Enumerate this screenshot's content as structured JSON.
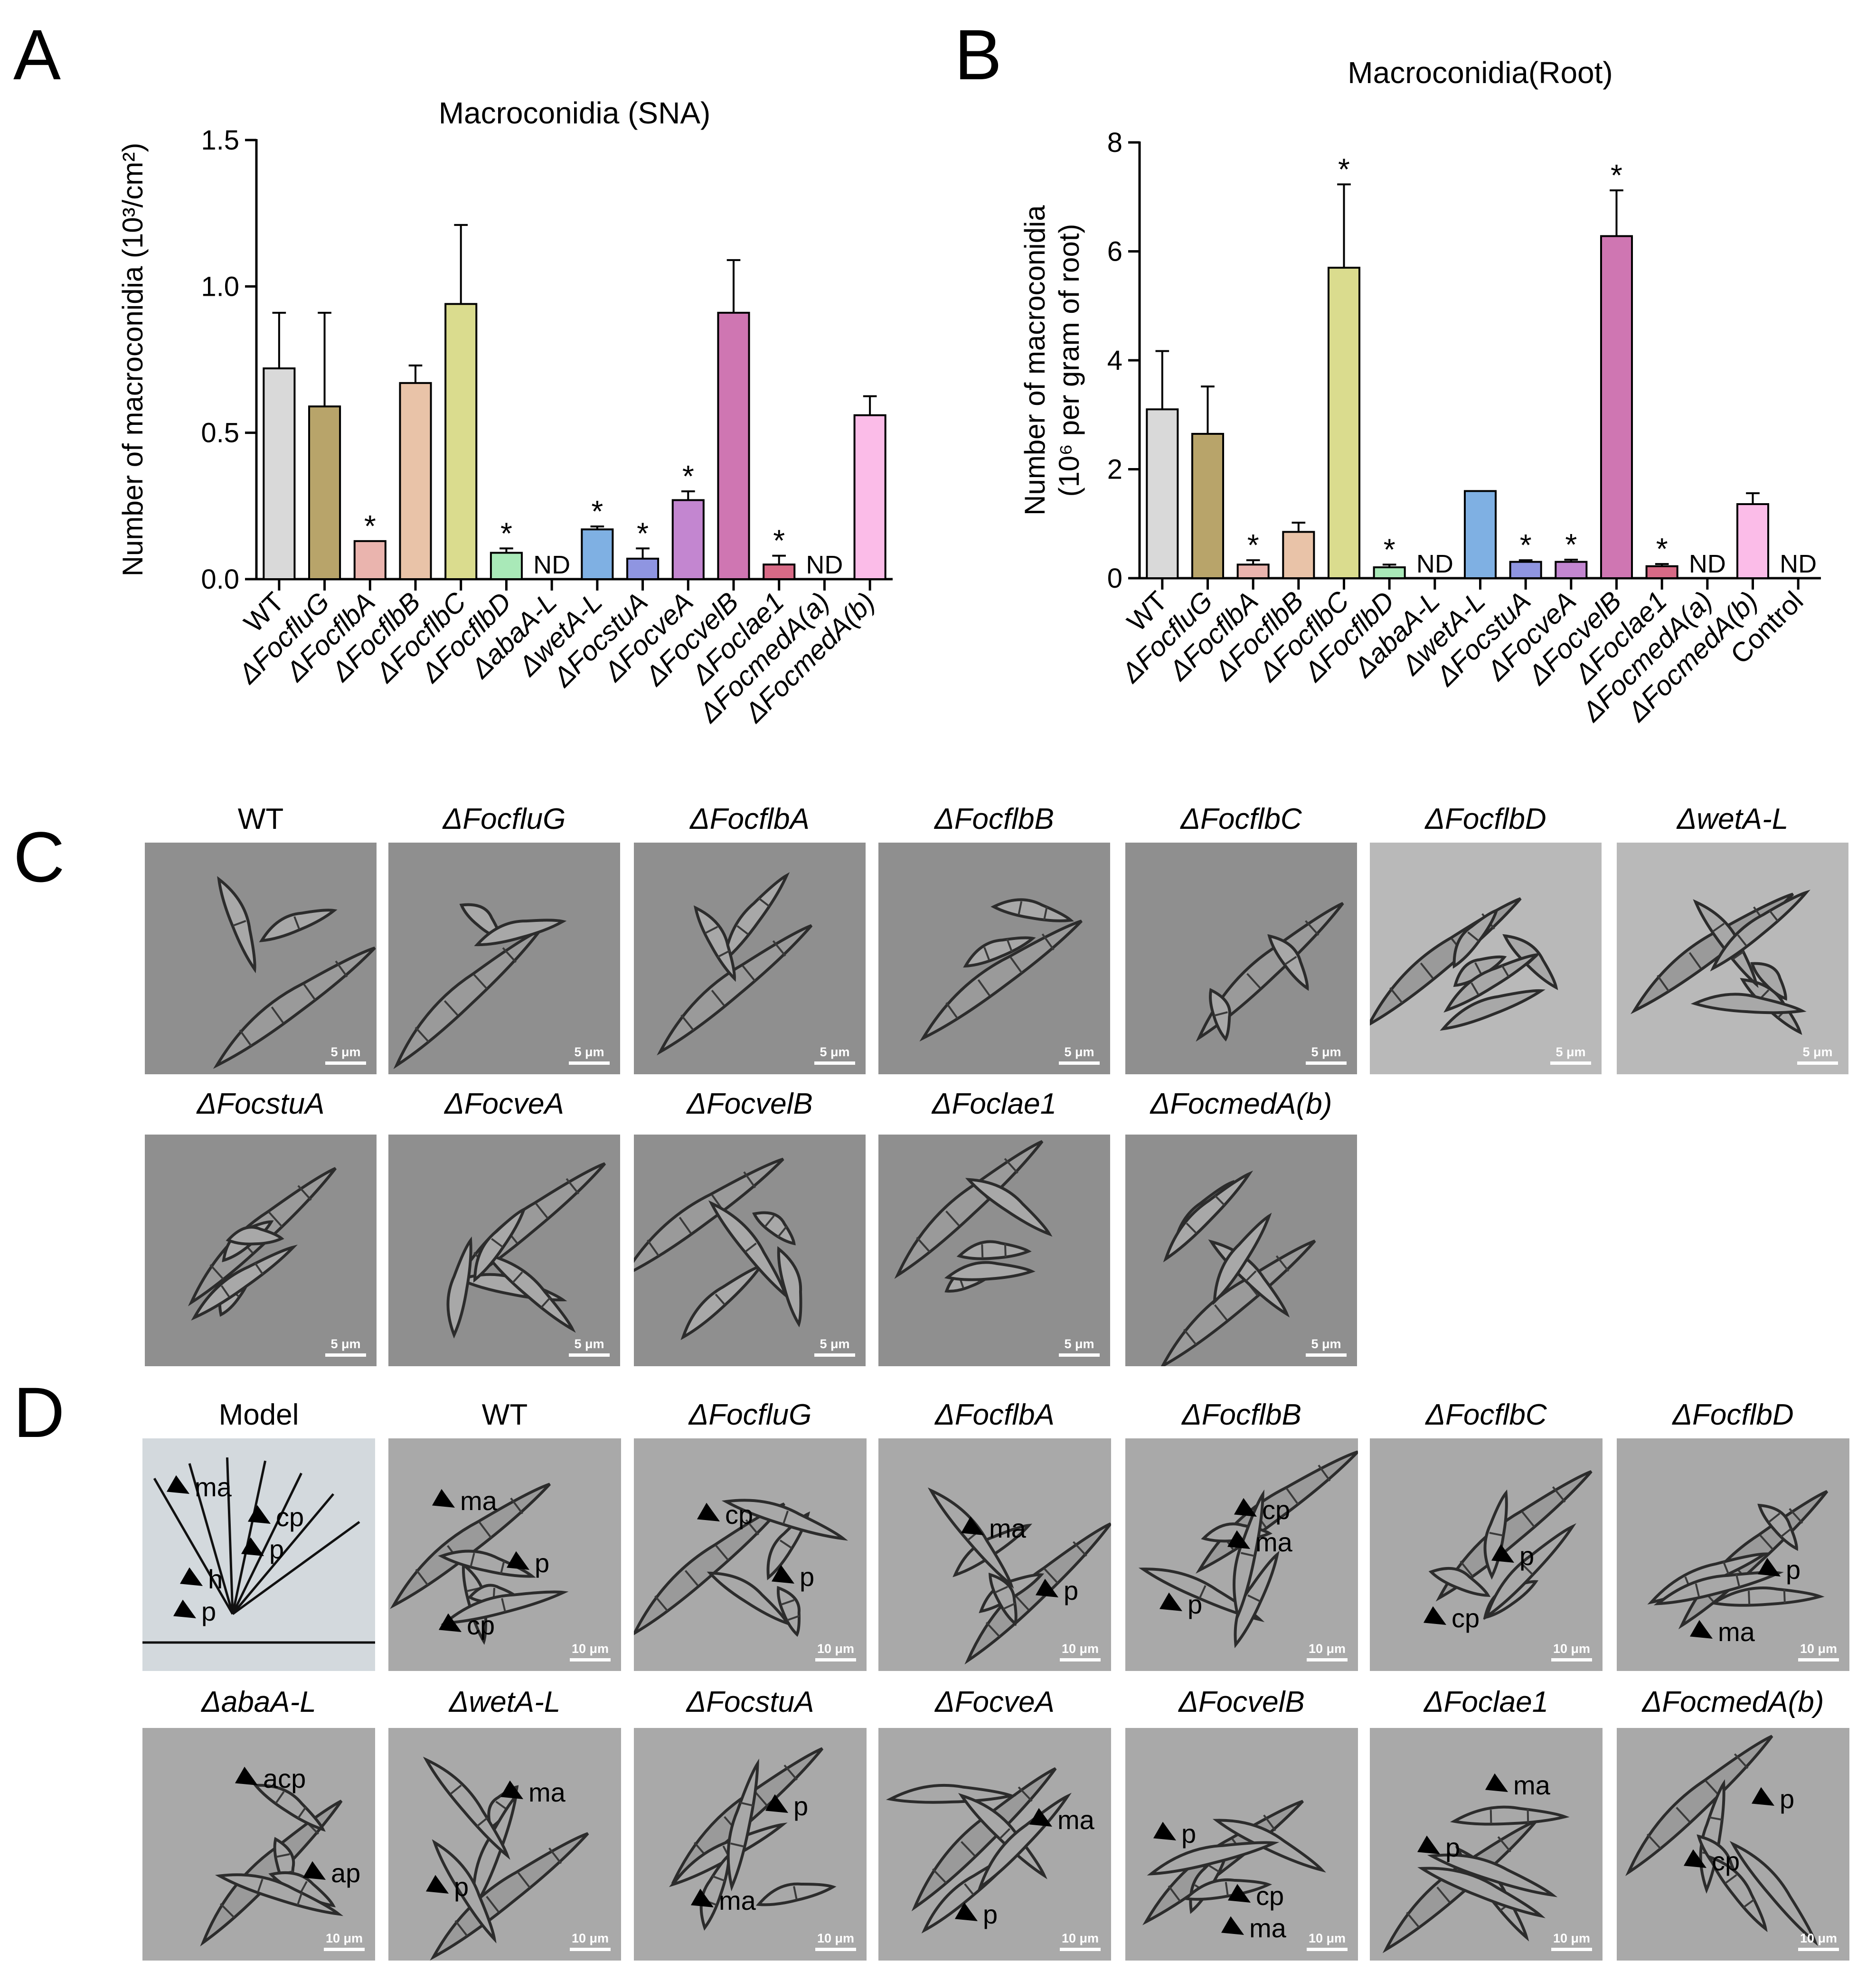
{
  "panels": {
    "a": "A",
    "b": "B",
    "c": "C",
    "d": "D"
  },
  "chart_data": [
    {
      "type": "bar",
      "title": "Macroconidia (SNA)",
      "ylabel": "Number of macroconidia (10³/cm²)",
      "ylim": [
        0,
        1.5
      ],
      "yticks": [
        "0.0",
        "0.5",
        "1.0",
        "1.5"
      ],
      "categories": [
        "WT",
        "ΔFocfluG",
        "ΔFocflbA",
        "ΔFocflbB",
        "ΔFocflbC",
        "ΔFocflbD",
        "ΔabaA-L",
        "ΔwetA-L",
        "ΔFocstuA",
        "ΔFocveA",
        "ΔFocvelB",
        "ΔFoclae1",
        "ΔFocmedA(a)",
        "ΔFocmedA(b)"
      ],
      "values": [
        0.72,
        0.59,
        0.13,
        0.67,
        0.94,
        0.09,
        null,
        0.17,
        0.07,
        0.27,
        0.91,
        0.05,
        null,
        0.56
      ],
      "errors": [
        0.19,
        0.32,
        0.0,
        0.06,
        0.27,
        0.015,
        null,
        0.01,
        0.035,
        0.03,
        0.18,
        0.03,
        null,
        0.065
      ],
      "marks": [
        "",
        "",
        "*",
        "",
        "",
        "*",
        "ND",
        "*",
        "*",
        "*",
        "",
        "*",
        "ND",
        ""
      ],
      "colors": [
        "#d9d9d9",
        "#b8a46a",
        "#eab4ae",
        "#e9c3a8",
        "#dadc8e",
        "#a9e9b8",
        "#ffffff",
        "#7fb0e3",
        "#8f95e1",
        "#c386d0",
        "#cf76b2",
        "#d86a86",
        "#ffffff",
        "#fbbce8"
      ]
    },
    {
      "type": "bar",
      "title": "Macroconidia(Root)",
      "ylabel": "Number of macroconidia",
      "ylabel2": "(10⁶ per gram of root)",
      "ylim": [
        0,
        8
      ],
      "yticks": [
        "0",
        "2",
        "4",
        "6",
        "8"
      ],
      "categories": [
        "WT",
        "ΔFocfluG",
        "ΔFocflbA",
        "ΔFocflbB",
        "ΔFocflbC",
        "ΔFocflbD",
        "ΔabaA-L",
        "ΔwetA-L",
        "ΔFocstuA",
        "ΔFocveA",
        "ΔFocvelB",
        "ΔFoclae1",
        "ΔFocmedA(a)",
        "ΔFocmedA(b)",
        "Control"
      ],
      "values": [
        3.1,
        2.65,
        0.25,
        0.85,
        5.7,
        0.2,
        null,
        1.6,
        0.3,
        0.3,
        6.28,
        0.22,
        null,
        1.36,
        null
      ],
      "errors": [
        1.07,
        0.87,
        0.08,
        0.17,
        1.53,
        0.05,
        null,
        0.0,
        0.03,
        0.04,
        0.84,
        0.04,
        null,
        0.2,
        null
      ],
      "marks": [
        "",
        "",
        "*",
        "",
        "*",
        "*",
        "ND",
        "",
        "*",
        "*",
        "*",
        "*",
        "ND",
        "",
        "ND"
      ],
      "colors": [
        "#d9d9d9",
        "#b8a46a",
        "#eab4ae",
        "#e9c3a8",
        "#dadc8e",
        "#a9e9b8",
        "#ffffff",
        "#7fb0e3",
        "#8f95e1",
        "#c386d0",
        "#cf76b2",
        "#d86a86",
        "#ffffff",
        "#fbbce8",
        "#ffffff"
      ]
    }
  ],
  "panel_c": {
    "scale_label": "5 μm",
    "images": [
      {
        "label": "WT"
      },
      {
        "label": "ΔFocfluG"
      },
      {
        "label": "ΔFocflbA"
      },
      {
        "label": "ΔFocflbB"
      },
      {
        "label": "ΔFocflbC"
      },
      {
        "label": "ΔFocflbD"
      },
      {
        "label": "ΔwetA-L"
      },
      {
        "label": "ΔFocstuA"
      },
      {
        "label": "ΔFocveA"
      },
      {
        "label": "ΔFocvelB"
      },
      {
        "label": "ΔFoclae1"
      },
      {
        "label": "ΔFocmedA(b)"
      }
    ]
  },
  "panel_d": {
    "scale_label": "10 μm",
    "images": [
      {
        "label": "Model",
        "annotations": [
          "ma",
          "p",
          "p",
          "cp",
          "h"
        ]
      },
      {
        "label": "WT",
        "annotations": [
          "ma",
          "p",
          "cp"
        ]
      },
      {
        "label": "ΔFocfluG",
        "annotations": [
          "cp",
          "p"
        ]
      },
      {
        "label": "ΔFocflbA",
        "annotations": [
          "ma",
          "p"
        ]
      },
      {
        "label": "ΔFocflbB",
        "annotations": [
          "ma",
          "p",
          "cp"
        ]
      },
      {
        "label": "ΔFocflbC",
        "annotations": [
          "p",
          "cp"
        ]
      },
      {
        "label": "ΔFocflbD",
        "annotations": [
          "p",
          "ma"
        ]
      },
      {
        "label": "ΔabaA-L",
        "annotations": [
          "ap",
          "acp"
        ]
      },
      {
        "label": "ΔwetA-L",
        "annotations": [
          "p",
          "ma"
        ]
      },
      {
        "label": "ΔFocstuA",
        "annotations": [
          "ma",
          "p"
        ]
      },
      {
        "label": "ΔFocveA",
        "annotations": [
          "p",
          "ma"
        ]
      },
      {
        "label": "ΔFocvelB",
        "annotations": [
          "ma",
          "p",
          "cp"
        ]
      },
      {
        "label": "ΔFoclae1",
        "annotations": [
          "ma",
          "p"
        ]
      },
      {
        "label": "ΔFocmedA(b)",
        "annotations": [
          "p",
          "cp"
        ]
      }
    ]
  }
}
